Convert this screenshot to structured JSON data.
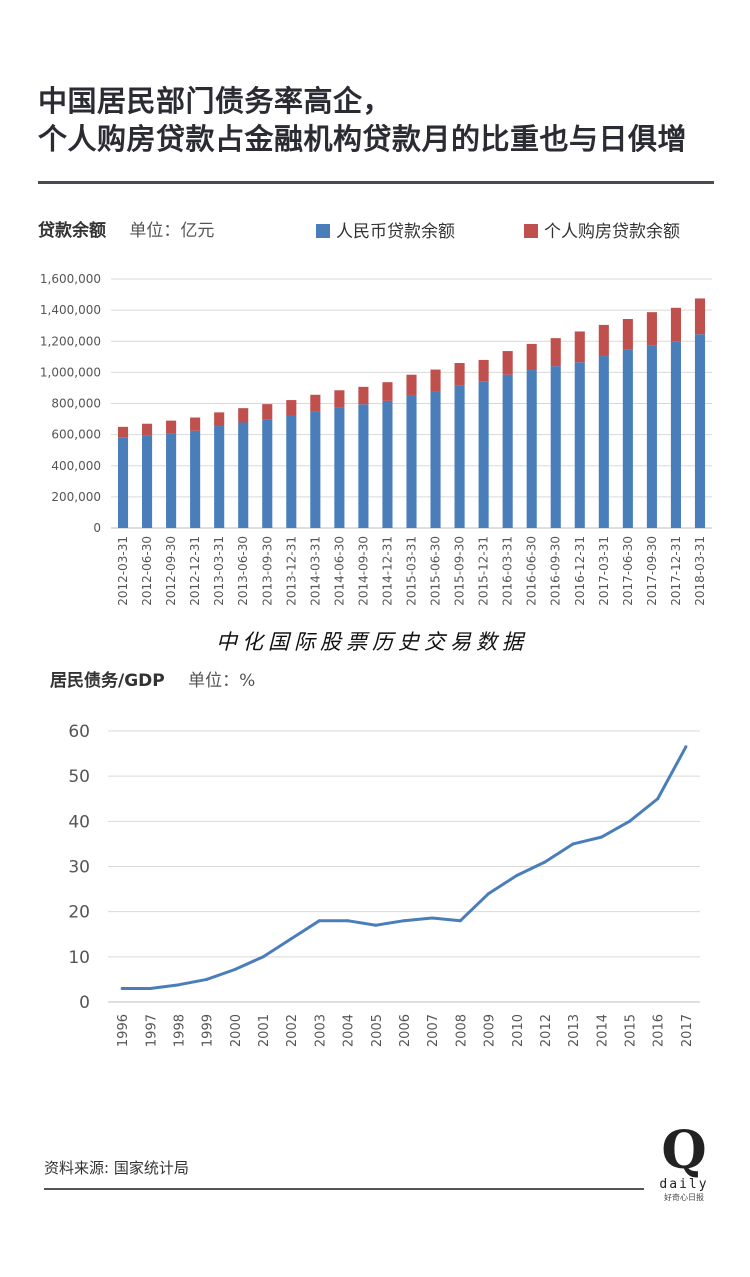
{
  "header": {
    "title_line1": "中国居民部门债务率高企，",
    "title_line2": "个人购房贷款占金融机构贷款月的比重也与日俱增"
  },
  "chart1": {
    "label": "贷款余额",
    "unit_label": "单位：亿元",
    "legend_rmb": "人民币贷款余额",
    "legend_housing": "个人购房贷款余额"
  },
  "chart2": {
    "label": "居民债务/GDP",
    "unit_label": "单位：%"
  },
  "watermark": "中化国际股票历史交易数据",
  "source": "资料来源: 国家统计局",
  "logo": {
    "letter": "Q",
    "word": "daily",
    "sub": "好奇心日报"
  },
  "colors": {
    "rmb": "#4a7ebb",
    "housing": "#c0504d",
    "line": "#4a7ebb",
    "grid": "#d9d9d9"
  },
  "chart_data": [
    {
      "type": "bar",
      "stacked": true,
      "categories": [
        "2012-03-31",
        "2012-06-30",
        "2012-09-30",
        "2012-12-31",
        "2013-03-31",
        "2013-06-30",
        "2013-09-30",
        "2013-12-31",
        "2014-03-31",
        "2014-06-30",
        "2014-09-30",
        "2014-12-31",
        "2015-03-31",
        "2015-06-30",
        "2015-09-30",
        "2015-12-31",
        "2016-03-31",
        "2016-06-30",
        "2016-09-30",
        "2016-12-31",
        "2017-03-31",
        "2017-06-30",
        "2017-09-30",
        "2017-12-31",
        "2018-03-31"
      ],
      "series": [
        {
          "name": "人民币贷款余额",
          "values": [
            580000,
            595000,
            610000,
            625000,
            655000,
            678000,
            698000,
            720000,
            748000,
            775000,
            795000,
            817000,
            855000,
            880000,
            918000,
            940000,
            985000,
            1015000,
            1040000,
            1065000,
            1105000,
            1145000,
            1175000,
            1200000,
            1245000
          ]
        },
        {
          "name": "个人购房贷款余额",
          "values": [
            70000,
            75000,
            80000,
            85000,
            88000,
            92000,
            98000,
            102000,
            108000,
            110000,
            112000,
            120000,
            130000,
            138000,
            142000,
            140000,
            152000,
            168000,
            180000,
            198000,
            200000,
            198000,
            212000,
            215000,
            230000
          ]
        }
      ],
      "yticks": [
        "0",
        "200,000",
        "400,000",
        "600,000",
        "800,000",
        "1,000,000",
        "1,200,000",
        "1,400,000",
        "1,600,000"
      ],
      "ylim": [
        0,
        1600000
      ],
      "grid": true,
      "legend": "top"
    },
    {
      "type": "line",
      "categories": [
        "1996",
        "1997",
        "1998",
        "1999",
        "2000",
        "2001",
        "2002",
        "2003",
        "2004",
        "2005",
        "2006",
        "2007",
        "2008",
        "2009",
        "2010",
        "2012",
        "2013",
        "2014",
        "2015",
        "2016",
        "2017"
      ],
      "values": [
        3,
        3,
        3.8,
        5,
        7.2,
        10,
        14,
        18,
        18,
        17,
        18,
        18.6,
        18,
        24,
        28,
        31,
        35,
        36.5,
        40,
        45,
        56.5
      ],
      "yticks": [
        "0",
        "10",
        "20",
        "30",
        "40",
        "50",
        "60"
      ],
      "ylim": [
        0,
        60
      ],
      "grid": true
    }
  ]
}
